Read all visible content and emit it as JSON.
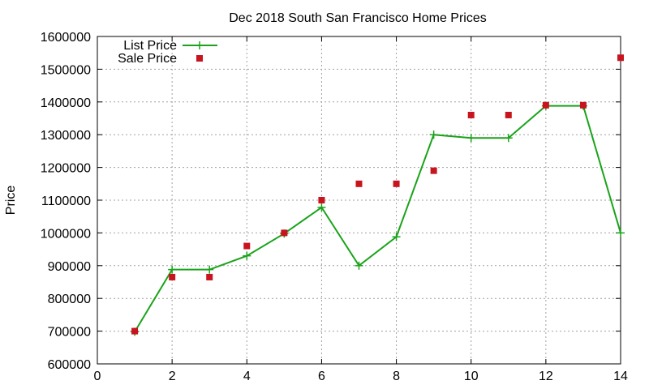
{
  "chart_data": {
    "type": "line",
    "title": "Dec 2018 South San Francisco Home Prices",
    "xlabel": "",
    "ylabel": "Price",
    "xlim": [
      0,
      14
    ],
    "ylim": [
      600000,
      1600000
    ],
    "x_ticks": [
      0,
      2,
      4,
      6,
      8,
      10,
      12,
      14
    ],
    "y_ticks": [
      600000,
      700000,
      800000,
      900000,
      1000000,
      1100000,
      1200000,
      1300000,
      1400000,
      1500000,
      1600000
    ],
    "grid": true,
    "legend_position": "top-left",
    "series": [
      {
        "name": "List Price",
        "style": "line+cross",
        "color": "#1aa31a",
        "x": [
          1,
          2,
          3,
          4,
          5,
          6,
          7,
          8,
          9,
          10,
          11,
          12,
          13,
          14
        ],
        "y": [
          698000,
          888000,
          888000,
          930000,
          998000,
          1078000,
          900000,
          988000,
          1300000,
          1290000,
          1290000,
          1388000,
          1388000,
          1000000
        ]
      },
      {
        "name": "Sale Price",
        "style": "square",
        "color": "#c8141e",
        "x": [
          1,
          2,
          3,
          4,
          5,
          6,
          7,
          8,
          9,
          10,
          11,
          12,
          13,
          14
        ],
        "y": [
          700000,
          865000,
          865000,
          960000,
          1000000,
          1100000,
          1150000,
          1150000,
          1190000,
          1360000,
          1360000,
          1390000,
          1390000,
          1535000
        ]
      }
    ]
  }
}
